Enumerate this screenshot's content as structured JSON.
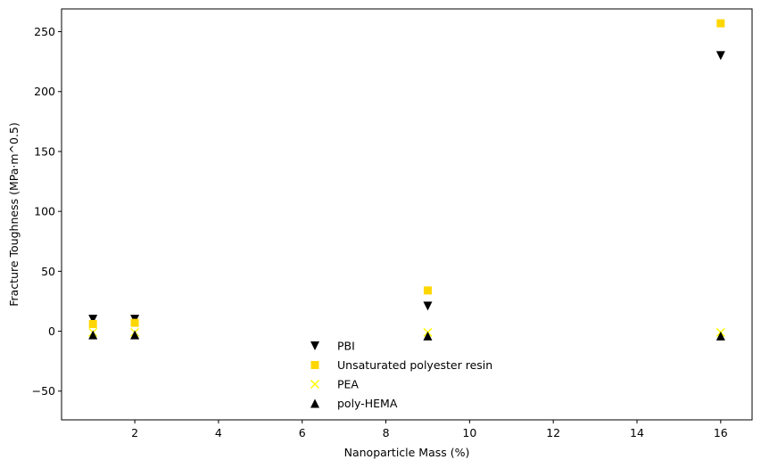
{
  "chart_data": {
    "type": "scatter",
    "title": "",
    "xlabel": "Nanoparticle Mass (%)",
    "ylabel": "Fracture Toughness (MPa·m^0.5)",
    "xlim": [
      0.25,
      16.75
    ],
    "ylim": [
      -74,
      269
    ],
    "xticks": [
      2,
      4,
      6,
      8,
      10,
      12,
      14,
      16
    ],
    "yticks": [
      -50,
      0,
      50,
      100,
      150,
      200,
      250
    ],
    "grid": false,
    "legend_position": "lower-center",
    "series": [
      {
        "name": "PBI",
        "marker": "triangle-down",
        "color": "#000000",
        "points": [
          {
            "x": 1,
            "y": 10
          },
          {
            "x": 2,
            "y": 10
          },
          {
            "x": 9,
            "y": 21
          },
          {
            "x": 16,
            "y": 230
          }
        ]
      },
      {
        "name": "Unsaturated polyester resin",
        "marker": "square",
        "color": "#FFD700",
        "points": [
          {
            "x": 1,
            "y": 6
          },
          {
            "x": 2,
            "y": 7
          },
          {
            "x": 9,
            "y": 34
          },
          {
            "x": 16,
            "y": 257
          }
        ]
      },
      {
        "name": "PEA",
        "marker": "x",
        "color": "#FFFF00",
        "points": [
          {
            "x": 1,
            "y": -1
          },
          {
            "x": 2,
            "y": -1
          },
          {
            "x": 9,
            "y": -1
          },
          {
            "x": 16,
            "y": -1
          }
        ]
      },
      {
        "name": "poly-HEMA",
        "marker": "triangle-up",
        "color": "#000000",
        "points": [
          {
            "x": 1,
            "y": -3
          },
          {
            "x": 2,
            "y": -3
          },
          {
            "x": 9,
            "y": -4
          },
          {
            "x": 16,
            "y": -4
          }
        ]
      }
    ]
  }
}
